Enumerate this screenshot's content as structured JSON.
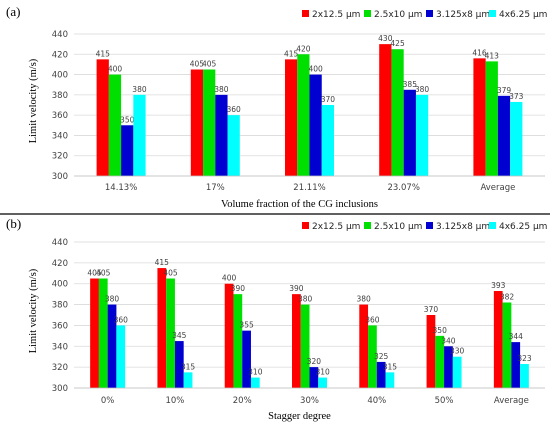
{
  "chart_data": [
    {
      "type": "bar",
      "panel_label": "(a)",
      "xlabel": "Volume fraction of the CG inclusions",
      "ylabel": "Limit velocity (m/s)",
      "ylim": [
        300,
        440
      ],
      "yticks": [
        300,
        320,
        340,
        360,
        380,
        400,
        420,
        440
      ],
      "grid": true,
      "legend_position": "top-right",
      "categories": [
        "14.13%",
        "17%",
        "21.11%",
        "23.07%",
        "Average"
      ],
      "series": [
        {
          "name": "2x12.5 μm",
          "color": "#ff0000",
          "values": [
            415,
            405,
            415,
            430,
            416
          ]
        },
        {
          "name": "2.5x10 μm",
          "color": "#00e000",
          "values": [
            400,
            405,
            420,
            425,
            413
          ]
        },
        {
          "name": "3.125x8 μm",
          "color": "#0000d0",
          "values": [
            350,
            380,
            400,
            385,
            379
          ]
        },
        {
          "name": "4x6.25 μm",
          "color": "#00ffff",
          "values": [
            380,
            360,
            370,
            380,
            373
          ]
        }
      ]
    },
    {
      "type": "bar",
      "panel_label": "(b)",
      "xlabel": "Stagger degree",
      "ylabel": "Limit velocity (m/s)",
      "ylim": [
        300,
        440
      ],
      "yticks": [
        300,
        320,
        340,
        360,
        380,
        400,
        420,
        440
      ],
      "grid": true,
      "legend_position": "top-right",
      "categories": [
        "0%",
        "10%",
        "20%",
        "30%",
        "40%",
        "50%",
        "Average"
      ],
      "series": [
        {
          "name": "2x12.5 μm",
          "color": "#ff0000",
          "values": [
            405,
            415,
            400,
            390,
            380,
            370,
            393
          ]
        },
        {
          "name": "2.5x10 μm",
          "color": "#00e000",
          "values": [
            405,
            405,
            390,
            380,
            360,
            350,
            382
          ]
        },
        {
          "name": "3.125x8 μm",
          "color": "#0000d0",
          "values": [
            380,
            345,
            355,
            320,
            325,
            340,
            344
          ]
        },
        {
          "name": "4x6.25 μm",
          "color": "#00ffff",
          "values": [
            360,
            315,
            310,
            310,
            315,
            330,
            323
          ]
        }
      ]
    }
  ]
}
